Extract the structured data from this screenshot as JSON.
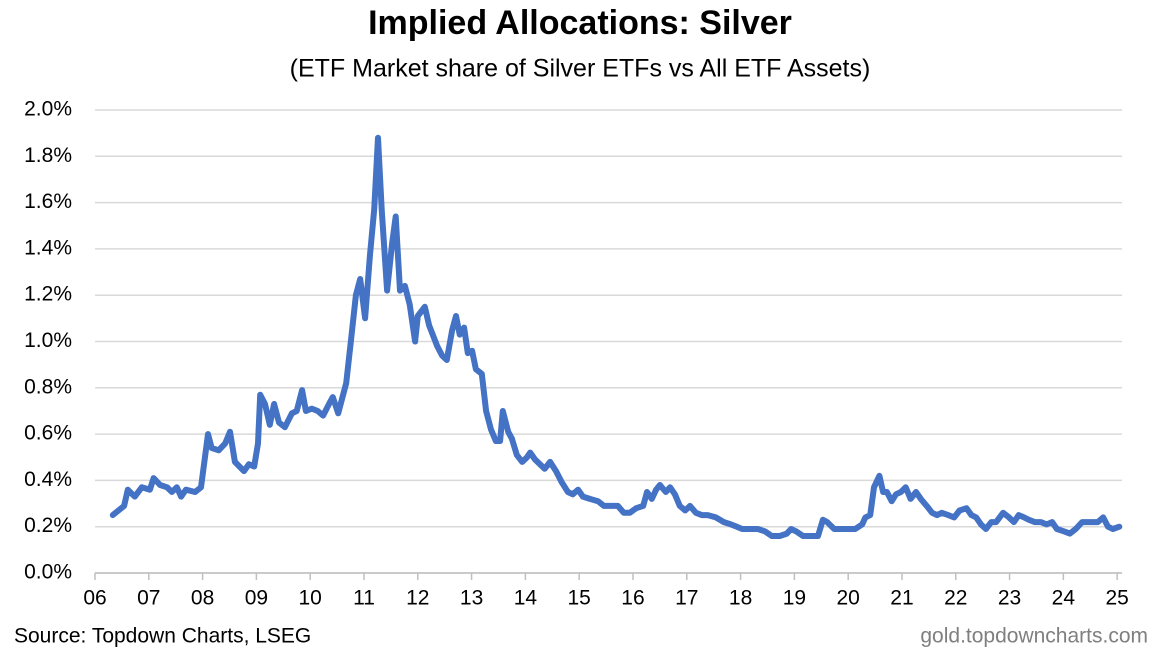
{
  "chart_data": {
    "type": "line",
    "title": "Implied Allocations: Silver",
    "subtitle": "(ETF Market share of Silver ETFs vs All ETF Assets)",
    "source": "Source: Topdown Charts, LSEG",
    "credit": "gold.topdowncharts.com",
    "color": "#4472c4",
    "grid": true,
    "xlim": [
      6,
      25.09
    ],
    "xticks": [
      {
        "value": 6,
        "label": "06"
      },
      {
        "value": 7,
        "label": "07"
      },
      {
        "value": 8,
        "label": "08"
      },
      {
        "value": 9,
        "label": "09"
      },
      10,
      11,
      12,
      13,
      14,
      15,
      16,
      17,
      18,
      19,
      20,
      21,
      22,
      23,
      24,
      25
    ],
    "ylim": [
      0,
      2
    ],
    "yticks": [
      {
        "value": 0,
        "label": "0.0%"
      },
      {
        "value": 0.2,
        "label": "0.2%"
      },
      {
        "value": 0.4,
        "label": "0.4%"
      },
      {
        "value": 0.6,
        "label": "0.6%"
      },
      {
        "value": 0.8,
        "label": "0.8%"
      },
      {
        "value": 1,
        "label": "1.0%"
      },
      {
        "value": 1.2,
        "label": "1.2%"
      },
      {
        "value": 1.4,
        "label": "1.4%"
      },
      {
        "value": 1.6,
        "label": "1.6%"
      },
      {
        "value": 1.8,
        "label": "1.8%"
      },
      {
        "value": 2,
        "label": "2.0%"
      }
    ],
    "x": [
      6.33,
      6.54,
      6.61,
      6.74,
      6.87,
      7.02,
      7.09,
      7.21,
      7.34,
      7.43,
      7.52,
      7.6,
      7.69,
      7.86,
      7.97,
      8.1,
      8.17,
      8.3,
      8.42,
      8.51,
      8.6,
      8.77,
      8.86,
      8.96,
      9.03,
      9.07,
      9.16,
      9.25,
      9.33,
      9.42,
      9.53,
      9.66,
      9.75,
      9.85,
      9.92,
      10.03,
      10.14,
      10.24,
      10.35,
      10.42,
      10.52,
      10.67,
      10.76,
      10.85,
      10.93,
      11.02,
      11.11,
      11.19,
      11.26,
      11.33,
      11.43,
      11.52,
      11.59,
      11.67,
      11.76,
      11.85,
      11.95,
      12.0,
      12.13,
      12.21,
      12.36,
      12.45,
      12.54,
      12.64,
      12.71,
      12.78,
      12.86,
      12.93,
      13.01,
      13.08,
      13.19,
      13.27,
      13.36,
      13.45,
      13.53,
      13.58,
      13.68,
      13.75,
      13.84,
      13.94,
      14.03,
      14.09,
      14.18,
      14.27,
      14.36,
      14.46,
      14.57,
      14.68,
      14.79,
      14.88,
      14.98,
      15.07,
      15.2,
      15.35,
      15.46,
      15.57,
      15.72,
      15.83,
      15.94,
      16.06,
      16.19,
      16.26,
      16.35,
      16.43,
      16.5,
      16.61,
      16.69,
      16.78,
      16.87,
      16.97,
      17.06,
      17.17,
      17.28,
      17.39,
      17.54,
      17.69,
      17.82,
      17.93,
      18.03,
      18.17,
      18.32,
      18.45,
      18.58,
      18.73,
      18.86,
      18.94,
      19.03,
      19.16,
      19.29,
      19.44,
      19.53,
      19.61,
      19.74,
      19.85,
      19.98,
      20.13,
      20.26,
      20.32,
      20.41,
      20.48,
      20.58,
      20.65,
      20.72,
      20.81,
      20.89,
      20.98,
      21.07,
      21.16,
      21.26,
      21.35,
      21.46,
      21.56,
      21.65,
      21.74,
      21.86,
      21.97,
      22.07,
      22.2,
      22.29,
      22.38,
      22.47,
      22.56,
      22.66,
      22.75,
      22.88,
      22.99,
      23.08,
      23.17,
      23.27,
      23.36,
      23.47,
      23.58,
      23.69,
      23.79,
      23.88,
      24.01,
      24.12,
      24.23,
      24.35,
      24.5,
      24.64,
      24.74,
      24.83,
      24.92,
      25.04
    ],
    "values": [
      0.25,
      0.29,
      0.36,
      0.33,
      0.37,
      0.36,
      0.41,
      0.38,
      0.37,
      0.35,
      0.37,
      0.33,
      0.36,
      0.35,
      0.37,
      0.6,
      0.54,
      0.53,
      0.56,
      0.61,
      0.48,
      0.44,
      0.47,
      0.46,
      0.56,
      0.77,
      0.73,
      0.64,
      0.73,
      0.65,
      0.63,
      0.69,
      0.7,
      0.79,
      0.7,
      0.71,
      0.7,
      0.68,
      0.73,
      0.76,
      0.69,
      0.82,
      1.01,
      1.2,
      1.27,
      1.1,
      1.37,
      1.57,
      1.88,
      1.57,
      1.22,
      1.42,
      1.54,
      1.22,
      1.24,
      1.16,
      1.0,
      1.11,
      1.15,
      1.07,
      0.98,
      0.94,
      0.92,
      1.05,
      1.11,
      1.03,
      1.06,
      0.95,
      0.96,
      0.88,
      0.86,
      0.7,
      0.62,
      0.57,
      0.57,
      0.7,
      0.61,
      0.58,
      0.51,
      0.48,
      0.5,
      0.52,
      0.49,
      0.47,
      0.45,
      0.48,
      0.44,
      0.39,
      0.35,
      0.34,
      0.36,
      0.33,
      0.32,
      0.31,
      0.29,
      0.29,
      0.29,
      0.26,
      0.26,
      0.28,
      0.29,
      0.35,
      0.32,
      0.36,
      0.38,
      0.35,
      0.37,
      0.34,
      0.29,
      0.27,
      0.29,
      0.26,
      0.25,
      0.25,
      0.24,
      0.22,
      0.21,
      0.2,
      0.19,
      0.19,
      0.19,
      0.18,
      0.16,
      0.16,
      0.17,
      0.19,
      0.18,
      0.16,
      0.16,
      0.16,
      0.23,
      0.22,
      0.19,
      0.19,
      0.19,
      0.19,
      0.21,
      0.24,
      0.25,
      0.37,
      0.42,
      0.35,
      0.35,
      0.31,
      0.34,
      0.35,
      0.37,
      0.32,
      0.35,
      0.32,
      0.29,
      0.26,
      0.25,
      0.26,
      0.25,
      0.24,
      0.27,
      0.28,
      0.25,
      0.24,
      0.21,
      0.19,
      0.22,
      0.22,
      0.26,
      0.24,
      0.22,
      0.25,
      0.24,
      0.23,
      0.22,
      0.22,
      0.21,
      0.22,
      0.19,
      0.18,
      0.17,
      0.19,
      0.22,
      0.22,
      0.22,
      0.24,
      0.2,
      0.19,
      0.2
    ]
  }
}
